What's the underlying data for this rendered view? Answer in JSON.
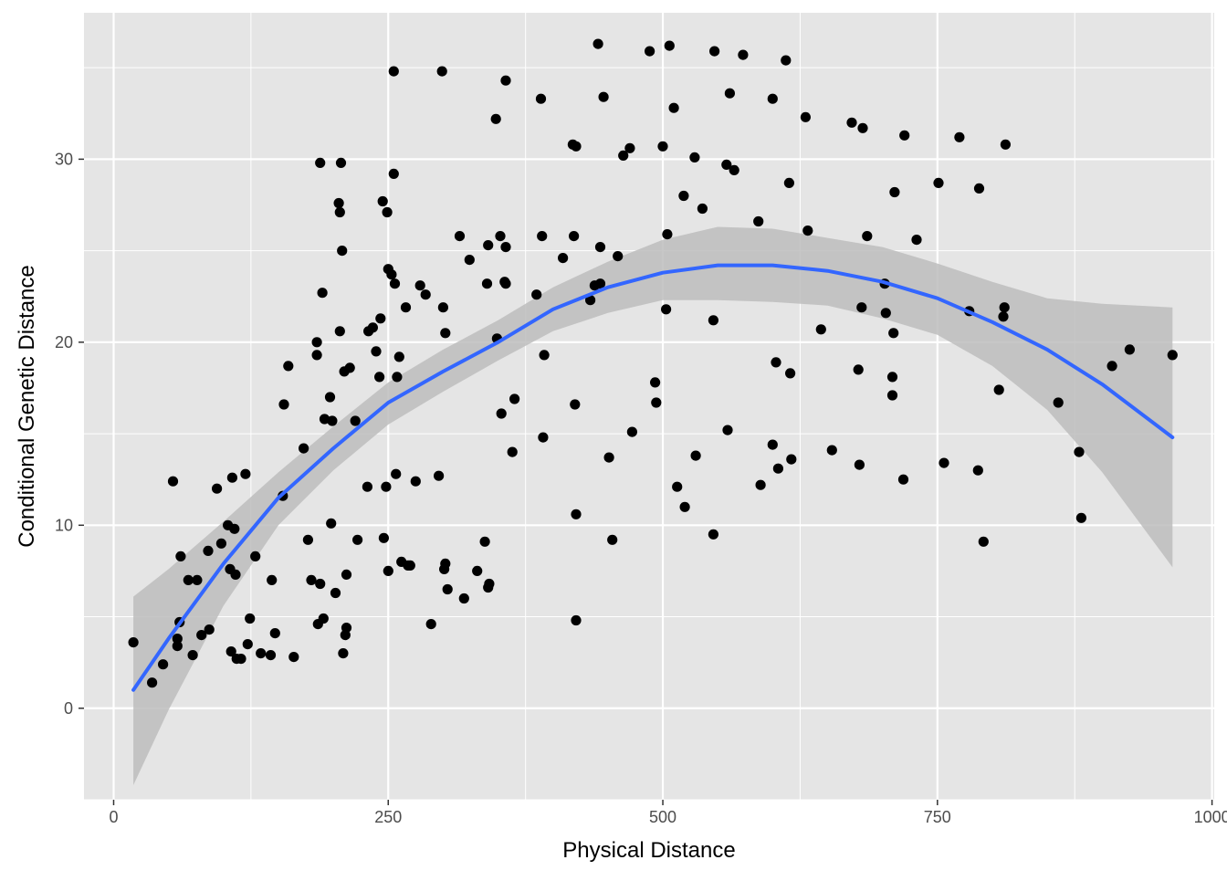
{
  "chart_data": {
    "type": "scatter",
    "title": "",
    "xlabel": "Physical Distance",
    "ylabel": "Conditional Genetic Distance",
    "xlim": [
      -27,
      1002
    ],
    "ylim": [
      -5,
      38
    ],
    "x_ticks": [
      0,
      250,
      500,
      750,
      1000
    ],
    "y_ticks": [
      0,
      10,
      20,
      30
    ],
    "x_tick_labels": [
      "0",
      "250",
      "500",
      "750",
      "1000"
    ],
    "y_tick_labels": [
      "0",
      "10",
      "20",
      "30"
    ],
    "grid": true,
    "legend": "none",
    "colors": {
      "panel_background": "#e5e5e5",
      "grid_line": "#ffffff",
      "points": "#000000",
      "smooth_line": "#3366ff",
      "confidence_band": "#bdbdbd"
    },
    "series": [
      {
        "kind": "points",
        "points": [
          [
            18,
            3.6
          ],
          [
            35,
            1.4
          ],
          [
            45,
            2.4
          ],
          [
            54,
            12.4
          ],
          [
            58,
            3.8
          ],
          [
            58,
            3.4
          ],
          [
            60,
            4.7
          ],
          [
            61,
            8.3
          ],
          [
            68,
            7
          ],
          [
            72,
            2.9
          ],
          [
            76,
            7
          ],
          [
            80,
            4
          ],
          [
            86,
            8.6
          ],
          [
            87,
            4.3
          ],
          [
            94,
            12
          ],
          [
            98,
            9
          ],
          [
            104,
            10
          ],
          [
            106,
            7.6
          ],
          [
            107,
            3.1
          ],
          [
            108,
            12.6
          ],
          [
            110,
            9.8
          ],
          [
            111,
            7.3
          ],
          [
            112,
            2.7
          ],
          [
            116,
            2.7
          ],
          [
            120,
            12.8
          ],
          [
            122,
            3.5
          ],
          [
            124,
            4.9
          ],
          [
            129,
            8.3
          ],
          [
            134,
            3
          ],
          [
            143,
            2.9
          ],
          [
            144,
            7
          ],
          [
            147,
            4.1
          ],
          [
            154,
            11.6
          ],
          [
            155,
            16.6
          ],
          [
            159,
            18.7
          ],
          [
            164,
            2.8
          ],
          [
            173,
            14.2
          ],
          [
            177,
            9.2
          ],
          [
            180,
            7
          ],
          [
            185,
            20
          ],
          [
            185,
            19.3
          ],
          [
            186,
            4.6
          ],
          [
            188,
            29.8
          ],
          [
            188,
            6.8
          ],
          [
            190,
            22.7
          ],
          [
            191,
            4.9
          ],
          [
            192,
            15.8
          ],
          [
            197,
            17
          ],
          [
            198,
            10.1
          ],
          [
            199,
            15.7
          ],
          [
            202,
            6.3
          ],
          [
            205,
            27.6
          ],
          [
            206,
            27.1
          ],
          [
            206,
            20.6
          ],
          [
            207,
            29.8
          ],
          [
            208,
            25
          ],
          [
            209,
            3
          ],
          [
            210,
            18.4
          ],
          [
            211,
            4
          ],
          [
            212,
            4.4
          ],
          [
            212,
            7.3
          ],
          [
            215,
            18.6
          ],
          [
            220,
            15.7
          ],
          [
            222,
            9.2
          ],
          [
            231,
            12.1
          ],
          [
            232,
            20.6
          ],
          [
            236,
            20.8
          ],
          [
            239,
            19.5
          ],
          [
            242,
            18.1
          ],
          [
            243,
            21.3
          ],
          [
            245,
            27.7
          ],
          [
            246,
            9.3
          ],
          [
            248,
            12.1
          ],
          [
            249,
            27.1
          ],
          [
            250,
            24
          ],
          [
            250,
            7.5
          ],
          [
            253,
            23.7
          ],
          [
            255,
            34.8
          ],
          [
            255,
            29.2
          ],
          [
            256,
            23.2
          ],
          [
            257,
            12.8
          ],
          [
            258,
            18.1
          ],
          [
            260,
            19.2
          ],
          [
            262,
            8
          ],
          [
            266,
            21.9
          ],
          [
            268,
            7.8
          ],
          [
            270,
            7.8
          ],
          [
            275,
            12.4
          ],
          [
            279,
            23.1
          ],
          [
            284,
            22.6
          ],
          [
            289,
            4.6
          ],
          [
            296,
            12.7
          ],
          [
            299,
            34.8
          ],
          [
            300,
            21.9
          ],
          [
            301,
            7.6
          ],
          [
            302,
            20.5
          ],
          [
            302,
            7.9
          ],
          [
            304,
            6.5
          ],
          [
            315,
            25.8
          ],
          [
            319,
            6
          ],
          [
            324,
            24.5
          ],
          [
            331,
            7.5
          ],
          [
            338,
            9.1
          ],
          [
            340,
            23.2
          ],
          [
            341,
            25.3
          ],
          [
            341,
            6.6
          ],
          [
            342,
            6.8
          ],
          [
            348,
            32.2
          ],
          [
            349,
            20.2
          ],
          [
            352,
            25.8
          ],
          [
            353,
            16.1
          ],
          [
            356,
            23.3
          ],
          [
            357,
            34.3
          ],
          [
            357,
            25.2
          ],
          [
            357,
            23.2
          ],
          [
            363,
            14
          ],
          [
            365,
            16.9
          ],
          [
            385,
            22.6
          ],
          [
            389,
            33.3
          ],
          [
            390,
            25.8
          ],
          [
            391,
            14.8
          ],
          [
            392,
            19.3
          ],
          [
            409,
            24.6
          ],
          [
            418,
            30.8
          ],
          [
            419,
            25.8
          ],
          [
            420,
            16.6
          ],
          [
            421,
            30.7
          ],
          [
            421,
            10.6
          ],
          [
            421,
            4.8
          ],
          [
            434,
            22.3
          ],
          [
            438,
            23.1
          ],
          [
            441,
            36.3
          ],
          [
            443,
            23.2
          ],
          [
            443,
            25.2
          ],
          [
            446,
            33.4
          ],
          [
            451,
            13.7
          ],
          [
            454,
            9.2
          ],
          [
            459,
            24.7
          ],
          [
            464,
            30.2
          ],
          [
            470,
            30.6
          ],
          [
            472,
            15.1
          ],
          [
            488,
            35.9
          ],
          [
            493,
            17.8
          ],
          [
            494,
            16.7
          ],
          [
            500,
            30.7
          ],
          [
            503,
            21.8
          ],
          [
            504,
            25.9
          ],
          [
            506,
            36.2
          ],
          [
            510,
            32.8
          ],
          [
            513,
            12.1
          ],
          [
            519,
            28
          ],
          [
            520,
            11
          ],
          [
            529,
            30.1
          ],
          [
            530,
            13.8
          ],
          [
            536,
            27.3
          ],
          [
            546,
            9.5
          ],
          [
            546,
            21.2
          ],
          [
            547,
            35.9
          ],
          [
            558,
            29.7
          ],
          [
            559,
            15.2
          ],
          [
            561,
            33.6
          ],
          [
            565,
            29.4
          ],
          [
            573,
            35.7
          ],
          [
            587,
            26.6
          ],
          [
            589,
            12.2
          ],
          [
            600,
            33.3
          ],
          [
            600,
            14.4
          ],
          [
            603,
            18.9
          ],
          [
            605,
            13.1
          ],
          [
            612,
            35.4
          ],
          [
            615,
            28.7
          ],
          [
            616,
            18.3
          ],
          [
            617,
            13.6
          ],
          [
            630,
            32.3
          ],
          [
            632,
            26.1
          ],
          [
            644,
            20.7
          ],
          [
            654,
            14.1
          ],
          [
            672,
            32
          ],
          [
            678,
            18.5
          ],
          [
            679,
            13.3
          ],
          [
            681,
            21.9
          ],
          [
            682,
            31.7
          ],
          [
            686,
            25.8
          ],
          [
            702,
            23.2
          ],
          [
            703,
            21.6
          ],
          [
            709,
            18.1
          ],
          [
            709,
            17.1
          ],
          [
            710,
            20.5
          ],
          [
            711,
            28.2
          ],
          [
            719,
            12.5
          ],
          [
            720,
            31.3
          ],
          [
            731,
            25.6
          ],
          [
            751,
            28.7
          ],
          [
            756,
            13.4
          ],
          [
            770,
            31.2
          ],
          [
            779,
            21.7
          ],
          [
            787,
            13
          ],
          [
            788,
            28.4
          ],
          [
            792,
            9.1
          ],
          [
            806,
            17.4
          ],
          [
            810,
            21.4
          ],
          [
            811,
            21.9
          ],
          [
            812,
            30.8
          ],
          [
            860,
            16.7
          ],
          [
            879,
            14
          ],
          [
            881,
            10.4
          ],
          [
            909,
            18.7
          ],
          [
            925,
            19.6
          ],
          [
            964,
            19.3
          ]
        ]
      },
      {
        "kind": "smooth",
        "method": "loess",
        "x": [
          18,
          50,
          100,
          150,
          200,
          250,
          300,
          350,
          400,
          450,
          500,
          550,
          600,
          650,
          700,
          750,
          800,
          850,
          900,
          964
        ],
        "y": [
          1,
          3.8,
          7.9,
          11.5,
          14.2,
          16.7,
          18.4,
          20,
          21.8,
          23,
          23.8,
          24.2,
          24.2,
          23.9,
          23.3,
          22.4,
          21.1,
          19.6,
          17.7,
          14.8
        ],
        "lower": [
          -4.2,
          -0.1,
          5.6,
          10,
          13,
          15.5,
          17.3,
          19,
          20.6,
          21.6,
          22.3,
          22.3,
          22.2,
          22,
          21.3,
          20.4,
          18.7,
          16.3,
          12.9,
          7.7
        ],
        "upper": [
          6.1,
          7.6,
          10.2,
          12.9,
          15.4,
          17.8,
          19.6,
          21.2,
          23,
          24.4,
          25.6,
          26.3,
          26.2,
          25.7,
          25.2,
          24.3,
          23.3,
          22.4,
          22.1,
          21.9
        ]
      }
    ]
  }
}
